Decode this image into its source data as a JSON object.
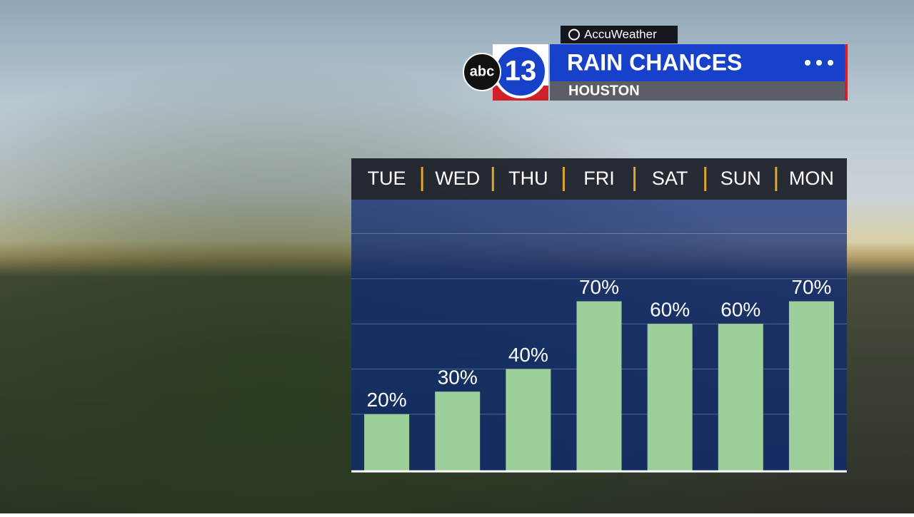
{
  "branding": {
    "provider": "AccuWeather",
    "network": "abc",
    "channel": "13"
  },
  "chart_data": {
    "type": "bar",
    "title": "RAIN CHANCES",
    "subtitle": "HOUSTON",
    "categories": [
      "TUE",
      "WED",
      "THU",
      "FRI",
      "SAT",
      "SUN",
      "MON"
    ],
    "values": [
      20,
      30,
      40,
      70,
      60,
      60,
      70
    ],
    "value_labels": [
      "20%",
      "30%",
      "40%",
      "70%",
      "60%",
      "60%",
      "70%"
    ],
    "color": "#9dcf9a",
    "ylim": [
      -5,
      115
    ],
    "yticks": [
      20,
      40,
      60,
      80,
      100
    ],
    "grid": true
  }
}
